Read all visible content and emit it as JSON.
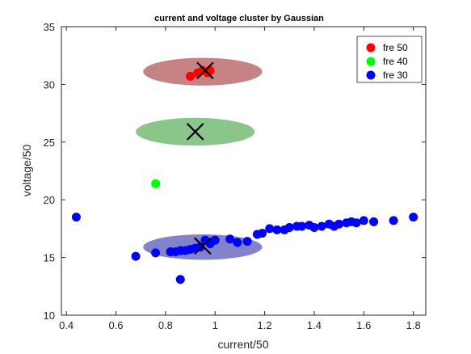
{
  "chart_data": {
    "type": "scatter",
    "title": "current and voltage cluster by Gaussian",
    "xlabel": "current/50",
    "ylabel": "voltage/50",
    "xlim": [
      0.38,
      1.85
    ],
    "ylim": [
      10,
      35
    ],
    "xticks": [
      0.4,
      0.6,
      0.8,
      1,
      1.2,
      1.4,
      1.6,
      1.8
    ],
    "xtick_labels": [
      "0.4",
      "0.6",
      "0.8",
      "1",
      "1.2",
      "1.4",
      "1.6",
      "1.8"
    ],
    "yticks": [
      10,
      15,
      20,
      25,
      30,
      35
    ],
    "ytick_labels": [
      "10",
      "15",
      "20",
      "25",
      "30",
      "35"
    ],
    "grid": false,
    "legend_position": "top-right",
    "series": [
      {
        "name": "fre 50",
        "color": "#ff0000",
        "points": [
          [
            0.9,
            30.7
          ],
          [
            0.93,
            31.0
          ],
          [
            0.95,
            31.2
          ],
          [
            0.97,
            31.0
          ],
          [
            0.98,
            31.2
          ]
        ]
      },
      {
        "name": "fre 40",
        "color": "#00ff00",
        "points": [
          [
            0.76,
            21.4
          ]
        ]
      },
      {
        "name": "fre 30",
        "color": "#0000ff",
        "points": [
          [
            0.44,
            18.5
          ],
          [
            0.68,
            15.1
          ],
          [
            0.76,
            15.4
          ],
          [
            0.86,
            13.1
          ],
          [
            0.82,
            15.5
          ],
          [
            0.84,
            15.5
          ],
          [
            0.86,
            15.6
          ],
          [
            0.88,
            15.6
          ],
          [
            0.9,
            15.7
          ],
          [
            0.92,
            15.8
          ],
          [
            0.94,
            15.9
          ],
          [
            0.96,
            16.5
          ],
          [
            0.98,
            16.2
          ],
          [
            1.0,
            16.5
          ],
          [
            1.06,
            16.6
          ],
          [
            1.09,
            16.3
          ],
          [
            1.13,
            16.4
          ],
          [
            1.17,
            17.0
          ],
          [
            1.19,
            17.1
          ],
          [
            1.22,
            17.5
          ],
          [
            1.25,
            17.4
          ],
          [
            1.28,
            17.4
          ],
          [
            1.3,
            17.6
          ],
          [
            1.33,
            17.7
          ],
          [
            1.35,
            17.7
          ],
          [
            1.38,
            17.8
          ],
          [
            1.4,
            17.6
          ],
          [
            1.43,
            17.7
          ],
          [
            1.46,
            17.9
          ],
          [
            1.48,
            17.7
          ],
          [
            1.5,
            17.9
          ],
          [
            1.53,
            18.0
          ],
          [
            1.55,
            18.1
          ],
          [
            1.57,
            18.0
          ],
          [
            1.6,
            18.2
          ],
          [
            1.64,
            18.1
          ],
          [
            1.72,
            18.2
          ],
          [
            1.8,
            18.5
          ]
        ]
      }
    ],
    "gaussian_ellipses": [
      {
        "cluster": "fre 50",
        "center": [
          0.95,
          31.1
        ],
        "rx": 0.24,
        "ry": 1.2,
        "color": "#a03030",
        "opacity": 0.6
      },
      {
        "cluster": "fre 40",
        "center": [
          0.92,
          25.9
        ],
        "rx": 0.24,
        "ry": 1.2,
        "color": "#4ca64c",
        "opacity": 0.65
      },
      {
        "cluster": "fre 30",
        "center": [
          0.95,
          15.9
        ],
        "rx": 0.24,
        "ry": 1.1,
        "color": "#4040b0",
        "opacity": 0.65
      }
    ],
    "centroids": [
      [
        0.96,
        31.2
      ],
      [
        0.92,
        25.9
      ],
      [
        0.95,
        16.0
      ]
    ]
  }
}
